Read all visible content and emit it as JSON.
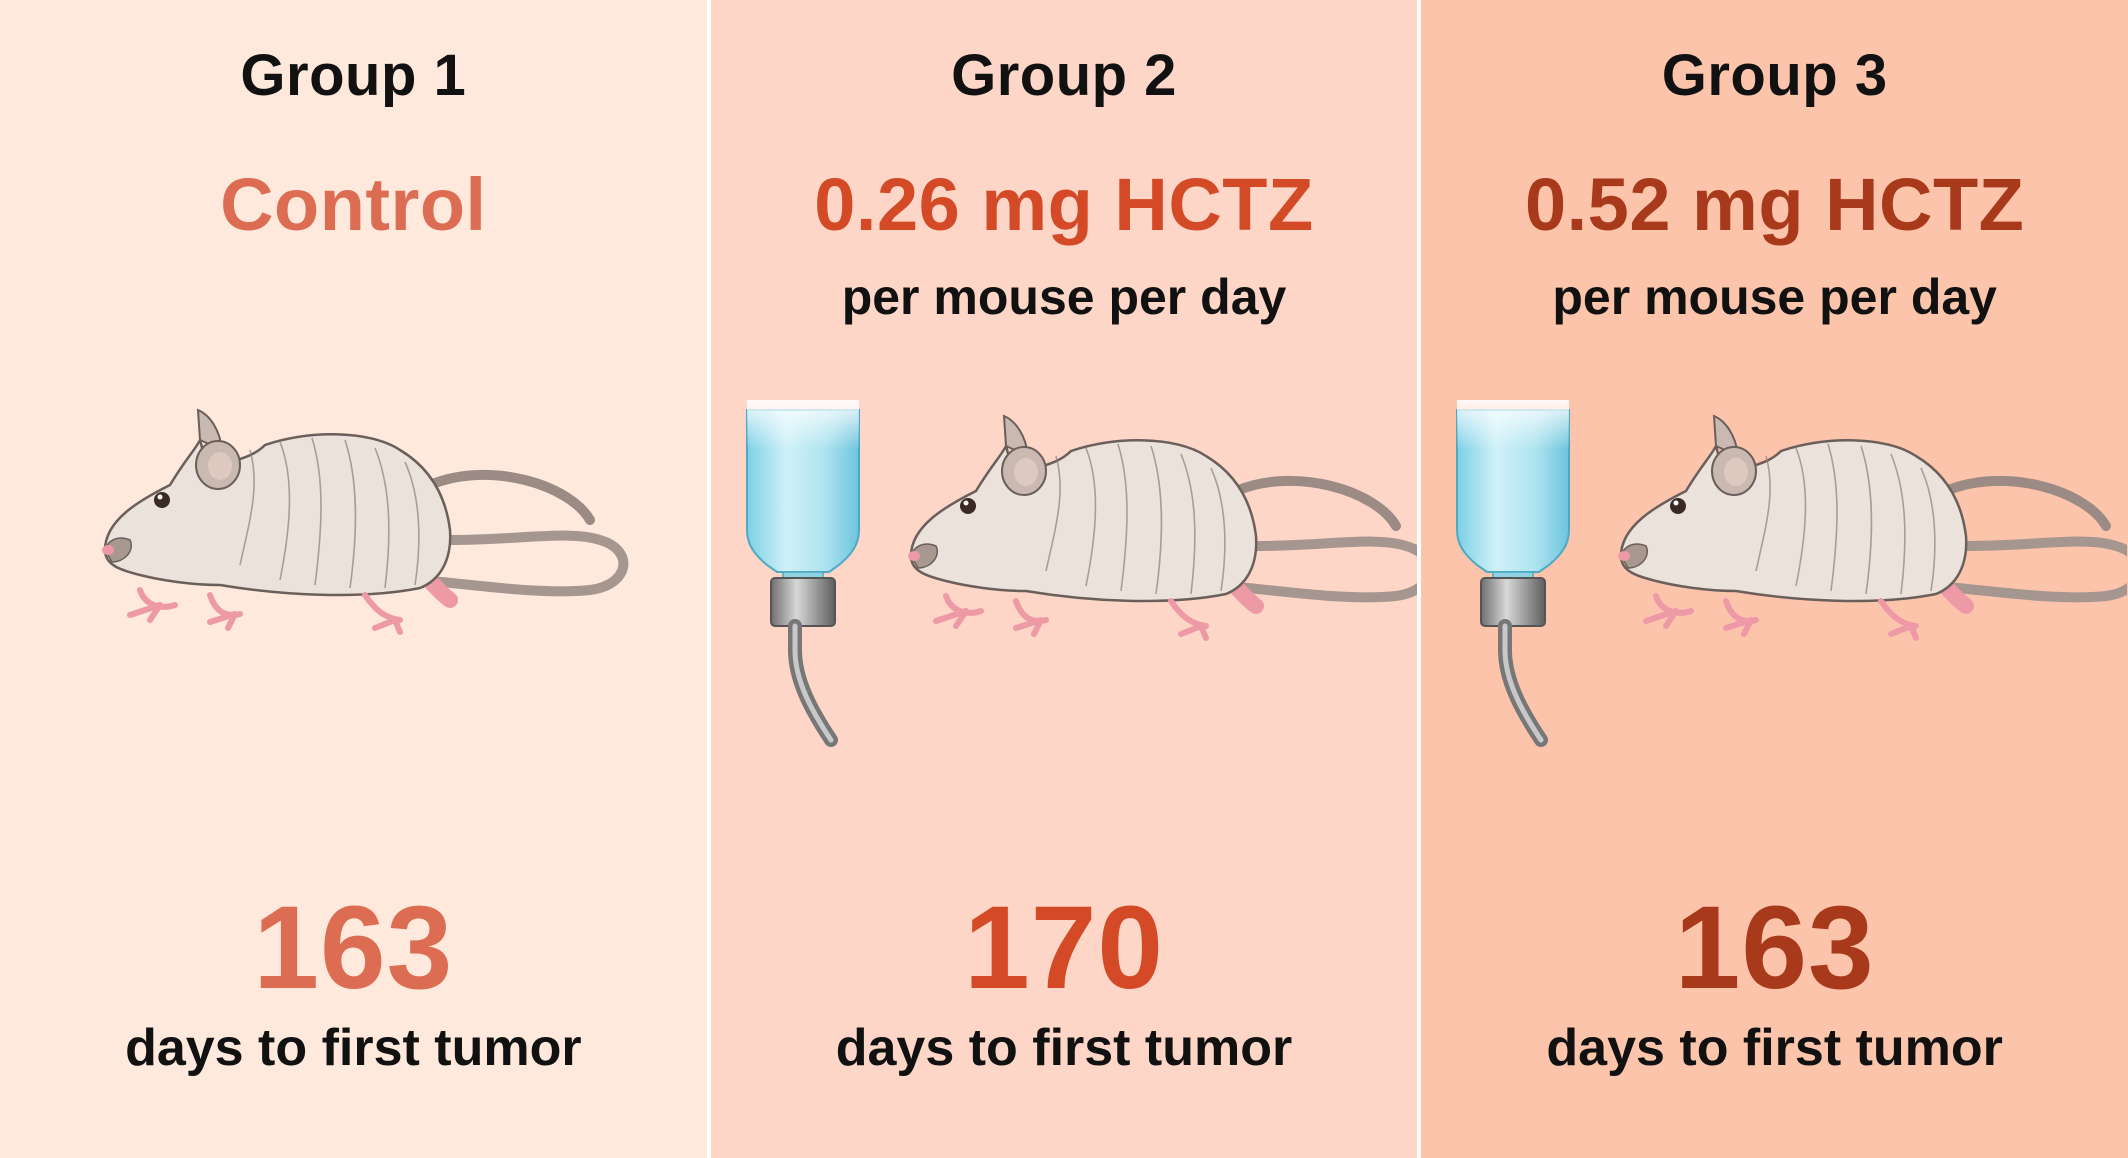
{
  "groups": [
    {
      "title": "Group 1",
      "treatment": "Control",
      "dose_unit": "",
      "has_water_bottle": false,
      "days_value": "163",
      "days_label": "days to first tumor",
      "background_color": "#fee9dc",
      "accent_color": "#dd6d52"
    },
    {
      "title": "Group 2",
      "treatment": "0.26 mg HCTZ",
      "dose_unit": "per mouse per day",
      "has_water_bottle": true,
      "days_value": "170",
      "days_label": "days to first tumor",
      "background_color": "#fdd6c8",
      "accent_color": "#d44a26"
    },
    {
      "title": "Group 3",
      "treatment": "0.52 mg HCTZ",
      "dose_unit": "per mouse per day",
      "has_water_bottle": true,
      "days_value": "163",
      "days_label": "days to first tumor",
      "background_color": "#fdc4ac",
      "accent_color": "#a8391a"
    }
  ]
}
